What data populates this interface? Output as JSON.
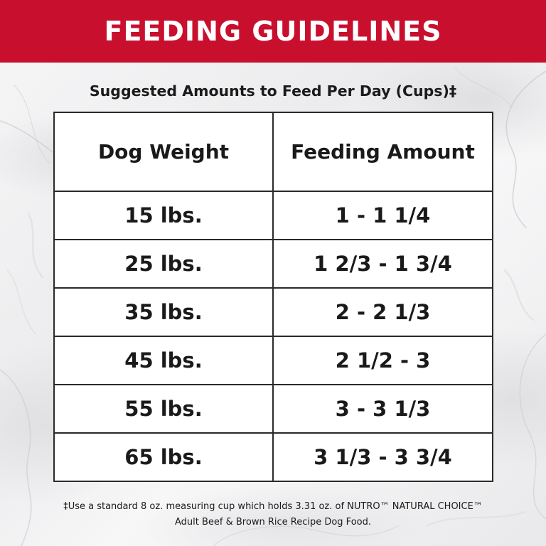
{
  "banner": {
    "title": "FEEDING GUIDELINES"
  },
  "subtitle": "Suggested Amounts to Feed Per Day (Cups)‡",
  "table": {
    "headers": [
      "Dog Weight",
      "Feeding Amount"
    ],
    "rows": [
      [
        "15 lbs.",
        "1 - 1 1/4"
      ],
      [
        "25 lbs.",
        "1 2/3 - 1 3/4"
      ],
      [
        "35 lbs.",
        "2 - 2 1/3"
      ],
      [
        "45 lbs.",
        "2 1/2 - 3"
      ],
      [
        "55 lbs.",
        "3 - 3 1/3"
      ],
      [
        "65 lbs.",
        "3 1/3 - 3 3/4"
      ]
    ]
  },
  "footnote": {
    "line1": "‡Use a standard 8 oz. measuring cup which holds 3.31 oz. of NUTRO™ NATURAL CHOICE™",
    "line2": "Adult Beef & Brown Rice Recipe Dog Food."
  },
  "colors": {
    "banner": "#c8102e",
    "text": "#1a1a1a",
    "background": "#f2f2f3"
  }
}
